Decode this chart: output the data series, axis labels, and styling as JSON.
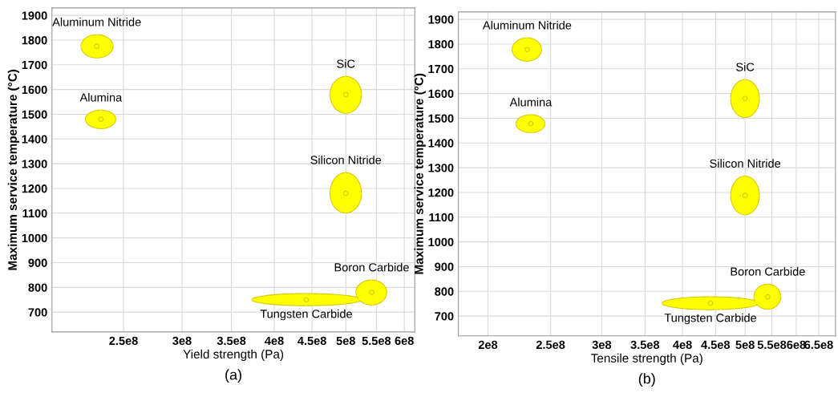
{
  "chart_data": [
    {
      "type": "scatter",
      "xlabel": "Yield strength (Pa)",
      "ylabel": "Maximum service temperature (°C)",
      "log": "x",
      "grid": true,
      "xlim": [
        200000000,
        620000000
      ],
      "ylim": [
        620,
        1930
      ],
      "xticks": [
        {
          "value": 250000000,
          "label": "2.5e8"
        },
        {
          "value": 300000000,
          "label": "3e8"
        },
        {
          "value": 350000000,
          "label": "3.5e8"
        },
        {
          "value": 400000000,
          "label": "4e8"
        },
        {
          "value": 450000000,
          "label": "4.5e8"
        },
        {
          "value": 500000000,
          "label": "5e8"
        },
        {
          "value": 550000000,
          "label": "5.5e8"
        },
        {
          "value": 600000000,
          "label": "6e8"
        }
      ],
      "yticks": [
        700,
        800,
        900,
        1000,
        1100,
        1200,
        1300,
        1400,
        1500,
        1600,
        1700,
        1800,
        1900
      ],
      "series": [
        {
          "name": "Aluminum Nitride",
          "color": "#ffff00",
          "x": [
            230000000
          ],
          "values": [
            1775
          ],
          "xerrors": [
            [
              219000000,
              242000000
            ]
          ],
          "errors": [
            [
              1728,
              1822
            ]
          ]
        },
        {
          "name": "Alumina",
          "color": "#ffff00",
          "x": [
            233000000
          ],
          "values": [
            1480
          ],
          "xerrors": [
            [
              222000000,
              244000000
            ]
          ],
          "errors": [
            [
              1442,
              1517
            ]
          ]
        },
        {
          "name": "SiC",
          "color": "#ffff00",
          "x": [
            500000000
          ],
          "values": [
            1580
          ],
          "xerrors": [
            [
              476000000,
              525000000
            ]
          ],
          "errors": [
            [
              1504,
              1653
            ]
          ]
        },
        {
          "name": "Silicon Nitride",
          "color": "#ffff00",
          "x": [
            500000000
          ],
          "values": [
            1180
          ],
          "xerrors": [
            [
              476000000,
              525000000
            ]
          ],
          "errors": [
            [
              1101,
              1264
            ]
          ]
        },
        {
          "name": "Tungsten Carbide",
          "color": "#ffff00",
          "x": [
            442000000
          ],
          "values": [
            750
          ],
          "xerrors": [
            [
              373000000,
              525000000
            ]
          ],
          "errors": [
            [
              726,
              775
            ]
          ]
        },
        {
          "name": "Boron Carbide",
          "color": "#ffff00",
          "x": [
            542000000
          ],
          "values": [
            780
          ],
          "xerrors": [
            [
              516000000,
              568000000
            ]
          ],
          "errors": [
            [
              729,
              830
            ]
          ]
        }
      ],
      "annotations": [
        "(a)"
      ]
    },
    {
      "type": "scatter",
      "xlabel": "Tensile strength (Pa)",
      "ylabel": "Maximum service temperature (°C)",
      "log": "x",
      "grid": true,
      "xlim": [
        180000000,
        690000000
      ],
      "ylim": [
        620,
        1930
      ],
      "xticks": [
        {
          "value": 200000000,
          "label": "2e8"
        },
        {
          "value": 250000000,
          "label": "2.5e8"
        },
        {
          "value": 300000000,
          "label": "3e8"
        },
        {
          "value": 350000000,
          "label": "3.5e8"
        },
        {
          "value": 400000000,
          "label": "4e8"
        },
        {
          "value": 450000000,
          "label": "4.5e8"
        },
        {
          "value": 500000000,
          "label": "5e8"
        },
        {
          "value": 550000000,
          "label": "5.5e8"
        },
        {
          "value": 600000000,
          "label": "6e8"
        },
        {
          "value": 650000000,
          "label": "6.5e8"
        }
      ],
      "yticks": [
        700,
        800,
        900,
        1000,
        1100,
        1200,
        1300,
        1400,
        1500,
        1600,
        1700,
        1800,
        1900
      ],
      "series": [
        {
          "name": "Aluminum Nitride",
          "color": "#ffff00",
          "x": [
            230000000
          ],
          "values": [
            1778
          ],
          "xerrors": [
            [
              218000000,
              242000000
            ]
          ],
          "errors": [
            [
              1731,
              1825
            ]
          ]
        },
        {
          "name": "Alumina",
          "color": "#ffff00",
          "x": [
            233000000
          ],
          "values": [
            1478
          ],
          "xerrors": [
            [
              221000000,
              245000000
            ]
          ],
          "errors": [
            [
              1442,
              1514
            ]
          ]
        },
        {
          "name": "SiC",
          "color": "#ffff00",
          "x": [
            500000000
          ],
          "values": [
            1580
          ],
          "xerrors": [
            [
              475000000,
              526000000
            ]
          ],
          "errors": [
            [
              1503,
              1656
            ]
          ]
        },
        {
          "name": "Silicon Nitride",
          "color": "#ffff00",
          "x": [
            500000000
          ],
          "values": [
            1188
          ],
          "xerrors": [
            [
              475000000,
              526000000
            ]
          ],
          "errors": [
            [
              1110,
              1266
            ]
          ]
        },
        {
          "name": "Tungsten Carbide",
          "color": "#ffff00",
          "x": [
            442000000
          ],
          "values": [
            752
          ],
          "xerrors": [
            [
              372000000,
              525000000
            ]
          ],
          "errors": [
            [
              726,
              778
            ]
          ]
        },
        {
          "name": "Boron Carbide",
          "color": "#ffff00",
          "x": [
            542000000
          ],
          "values": [
            778
          ],
          "xerrors": [
            [
              516000000,
              568000000
            ]
          ],
          "errors": [
            [
              728,
              829
            ]
          ]
        }
      ],
      "annotations": [
        "(b)"
      ]
    }
  ]
}
